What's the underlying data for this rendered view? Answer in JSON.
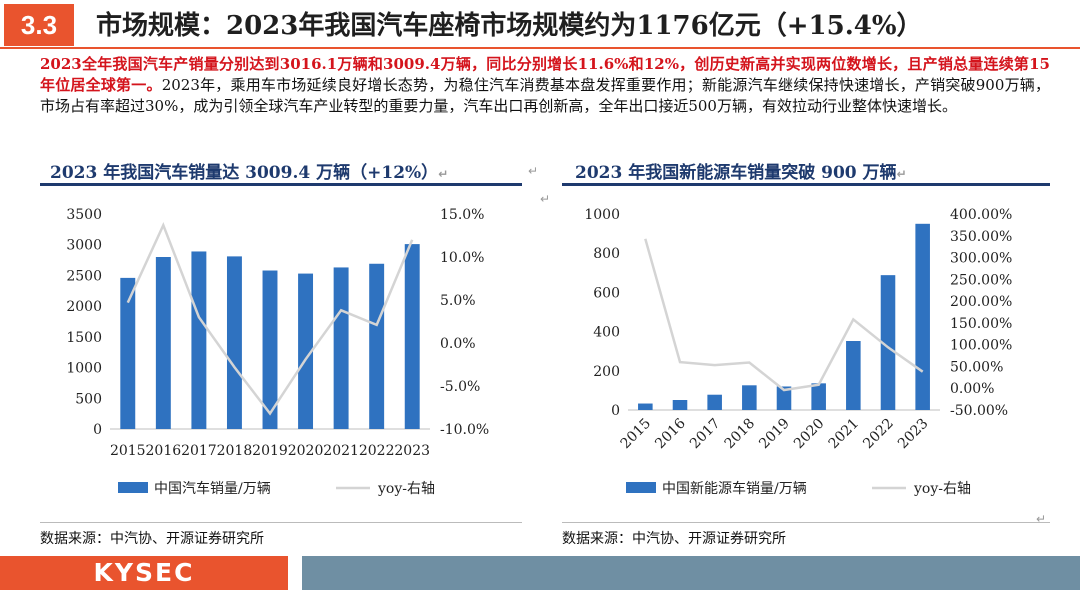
{
  "header": {
    "section_number": "3.3",
    "title": "市场规模：2023年我国汽车座椅市场规模约为1176亿元（+15.4%）"
  },
  "paragraph": {
    "highlight": "2023全年我国汽车产销量分别达到3016.1万辆和3009.4万辆，同比分别增长11.6%和12%，创历史新高并实现两位数增长，且产销总量连续第15年位居全球第一。",
    "body": "2023年，乘用车市场延续良好增长态势，为稳住汽车消费基本盘发挥重要作用；新能源汽车继续保持快速增长，产销突破900万辆，市场占有率超过30%，成为引领全球汽车产业转型的重要力量，汽车出口再创新高，全年出口接近500万辆，有效拉动行业整体快速增长。"
  },
  "return_mark": "↵",
  "chart_data": [
    {
      "type": "bar",
      "title": "2023 年我国汽车销量达 3009.4 万辆（+12%）",
      "categories": [
        "2015",
        "2016",
        "2017",
        "2018",
        "2019",
        "2020",
        "2021",
        "2022",
        "2023"
      ],
      "series": [
        {
          "name": "中国汽车销量/万辆",
          "type": "bar",
          "axis": "left",
          "color": "#2f72c0",
          "values": [
            2460,
            2800,
            2890,
            2810,
            2580,
            2530,
            2630,
            2690,
            3010
          ]
        },
        {
          "name": "yoy-右轴",
          "type": "line",
          "axis": "right",
          "color": "#d4d4d4",
          "values": [
            4.7,
            13.7,
            3.0,
            -2.8,
            -8.2,
            -1.9,
            3.8,
            2.1,
            12.0
          ]
        }
      ],
      "left_ticks": [
        "0",
        "500",
        "1000",
        "1500",
        "2000",
        "2500",
        "3000",
        "3500"
      ],
      "right_ticks": [
        "-10.0%",
        "-5.0%",
        "0.0%",
        "5.0%",
        "10.0%",
        "15.0%"
      ],
      "ylim": [
        0,
        3500
      ],
      "y2lim": [
        -10,
        15
      ],
      "legend_position": "bottom",
      "grid": false
    },
    {
      "type": "bar",
      "title": "2023 年我国新能源车销量突破 900 万辆",
      "categories": [
        "2015",
        "2016",
        "2017",
        "2018",
        "2019",
        "2020",
        "2021",
        "2022",
        "2023"
      ],
      "series": [
        {
          "name": "中国新能源车销量/万辆",
          "type": "bar",
          "axis": "left",
          "color": "#2f72c0",
          "values": [
            33,
            51,
            78,
            126,
            120,
            136,
            352,
            688,
            950
          ]
        },
        {
          "name": "yoy-右轴",
          "type": "line",
          "axis": "right",
          "color": "#d4d4d4",
          "values": [
            343,
            60,
            53,
            59,
            -4,
            8,
            158,
            94,
            38
          ]
        }
      ],
      "left_ticks": [
        "0",
        "200",
        "400",
        "600",
        "800",
        "1000"
      ],
      "right_ticks": [
        "-50.00%",
        "0.00%",
        "50.00%",
        "100.00%",
        "150.00%",
        "200.00%",
        "250.00%",
        "300.00%",
        "350.00%",
        "400.00%"
      ],
      "ylim": [
        0,
        1000
      ],
      "y2lim": [
        -50,
        400
      ],
      "legend_position": "bottom",
      "grid": false
    }
  ],
  "sources": {
    "left": "数据来源：中汽协、开源证券研究所",
    "right": "数据来源：中汽协、开源证券研究所"
  },
  "footer": {
    "logo_text": "KYSEC",
    "accent": "#e9542e",
    "bar": "#6f8fa3"
  }
}
